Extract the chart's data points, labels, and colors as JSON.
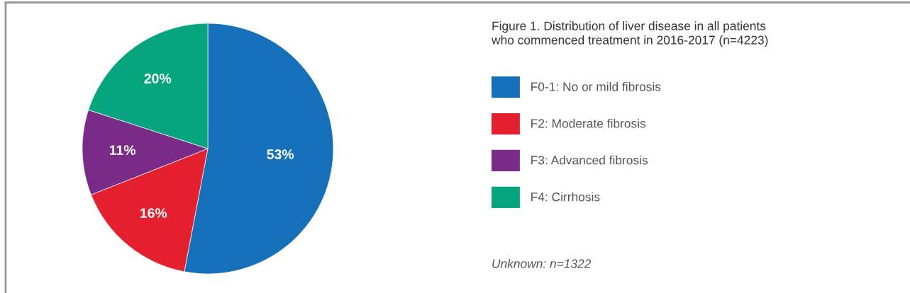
{
  "chart_data": {
    "type": "pie",
    "title": "Figure 1. Distribution of liver disease in all patients\nwho commenced treatment in 2016-2017 (n=4223)",
    "categories": [
      "F0-1: No or mild fibrosis",
      "F2: Moderate fibrosis",
      "F3: Advanced fibrosis",
      "F4: Cirrhosis"
    ],
    "values": [
      53,
      16,
      11,
      20
    ],
    "colors": [
      "#1670b9",
      "#e4202e",
      "#7a2b88",
      "#07a57d"
    ],
    "value_labels": [
      "53%",
      "16%",
      "11%",
      "20%"
    ],
    "legend": "right",
    "annotations": [
      "Unknown: n=1322"
    ]
  }
}
